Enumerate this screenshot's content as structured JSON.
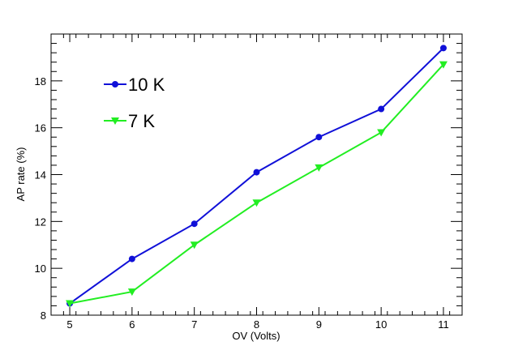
{
  "chart_data": {
    "type": "line",
    "title": "",
    "xlabel": "OV (Volts)",
    "ylabel": "AP rate (%)",
    "xlim": [
      4.7,
      11.3
    ],
    "ylim": [
      8,
      20
    ],
    "x_ticks": [
      5,
      6,
      7,
      8,
      9,
      10,
      11
    ],
    "y_ticks": [
      8,
      10,
      12,
      14,
      16,
      18
    ],
    "legend_position": "top-left",
    "series": [
      {
        "name": "10 K",
        "color": "#1010d8",
        "marker": "circle",
        "x": [
          5,
          6,
          7,
          8,
          9,
          10,
          11
        ],
        "y": [
          8.5,
          10.4,
          11.9,
          14.1,
          15.6,
          16.8,
          19.4
        ]
      },
      {
        "name": "7 K",
        "color": "#22ee22",
        "marker": "triangle-down",
        "x": [
          5,
          6,
          7,
          8,
          9,
          10,
          11
        ],
        "y": [
          8.5,
          9.0,
          11.0,
          12.8,
          14.3,
          15.8,
          18.7
        ]
      }
    ]
  }
}
